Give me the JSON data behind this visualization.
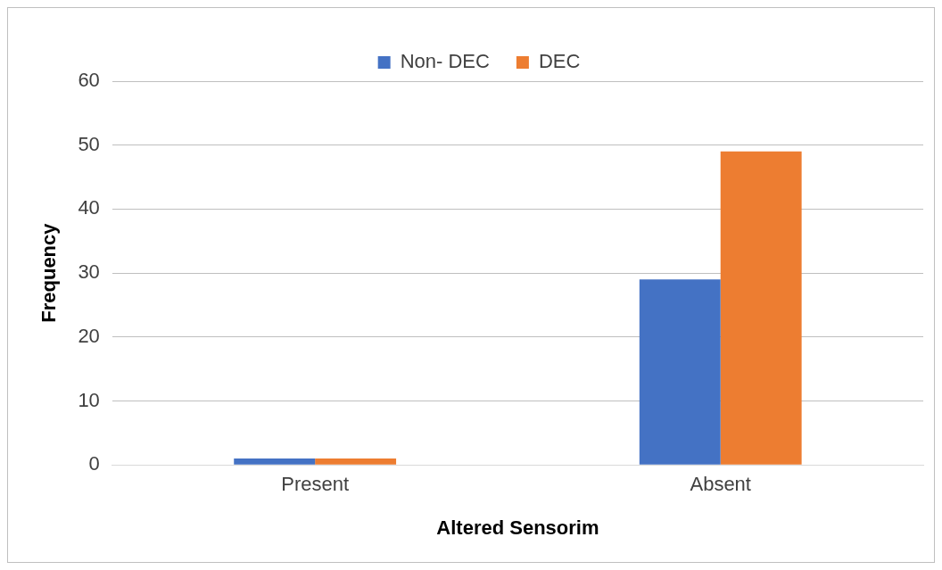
{
  "chart_data": {
    "type": "bar",
    "xlabel": "Altered Sensorim",
    "ylabel": "Frequency",
    "categories": [
      "Present",
      "Absent"
    ],
    "series": [
      {
        "name": "Non- DEC",
        "color": "#4472c4",
        "values": [
          1,
          29
        ]
      },
      {
        "name": "DEC",
        "color": "#ed7d31",
        "values": [
          1,
          49
        ]
      }
    ],
    "ylim": [
      0,
      60
    ],
    "yticks": [
      0,
      10,
      20,
      30,
      40,
      50,
      60
    ],
    "grid": "y",
    "legend": "top"
  }
}
